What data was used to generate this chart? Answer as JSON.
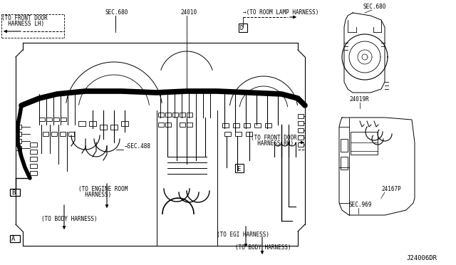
{
  "bg_color": "#ffffff",
  "line_color": "#000000",
  "fig_width": 6.4,
  "fig_height": 3.72,
  "dpi": 100,
  "labels": {
    "front_door_lh_1": "(TO FRONT DOOR",
    "front_door_lh_2": "  HARNESS LH)",
    "sec680_left": "SEC.680",
    "part_24010": "24010",
    "room_lamp": "→(TO ROOM LAMP HARNESS)",
    "D_label": "D",
    "front_door_rh_1": "(TO FRONT DOOR",
    "front_door_rh_2": "  HARNESS RH)",
    "sec680_right": "SEC.680",
    "part_24019r": "24019R",
    "part_24167p": "24167P",
    "sec969": "SEC.969",
    "sec488_arrow": "→SEC.488",
    "engine_room_1": "(TO ENGINE ROOM",
    "engine_room_2": "  HARNESS)",
    "body_harness_left": "(TO BODY HARNESS)",
    "A_label": "A",
    "B_label": "B",
    "E_label": "E",
    "egi_harness": "(TO EGI HARNESS)",
    "body_harness_right": "(TO BODY HARNESS)",
    "diagram_ref": "J24006DR"
  }
}
